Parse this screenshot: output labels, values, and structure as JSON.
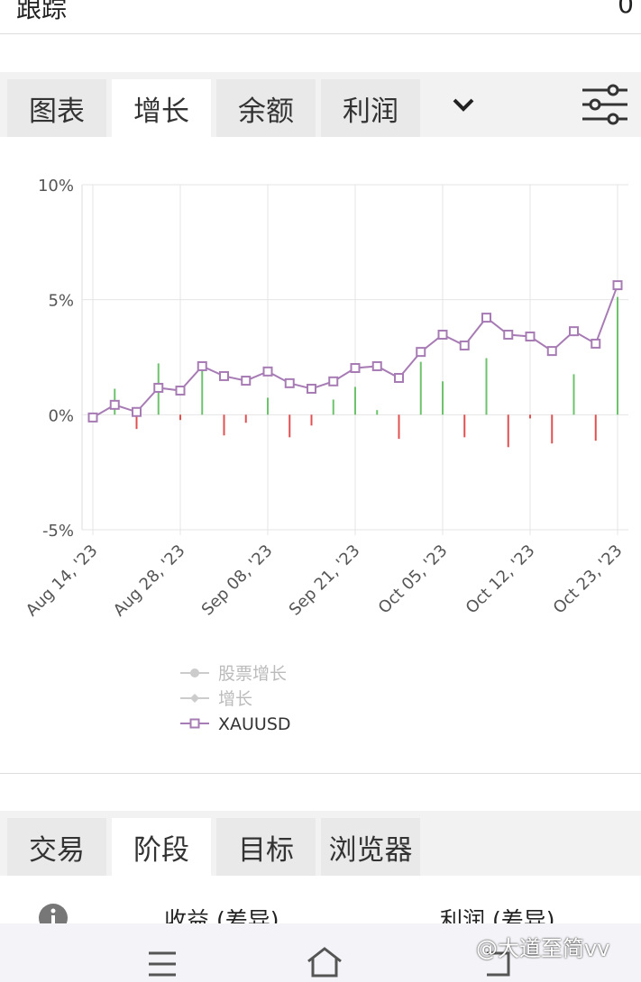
{
  "header": {
    "label": "跟踪",
    "value": "0"
  },
  "tabs": [
    "图表",
    "增长",
    "余额",
    "利润"
  ],
  "active_tab": 1,
  "chart_data": {
    "type": "line",
    "categories": [
      "Aug 14, '23",
      null,
      null,
      null,
      "Aug 28, '23",
      null,
      null,
      null,
      "Sep 08, '23",
      null,
      null,
      null,
      "Sep 21, '23",
      null,
      null,
      null,
      "Oct 05, '23",
      null,
      null,
      null,
      "Oct 12, '23",
      null,
      null,
      null,
      "Oct 23, '23"
    ],
    "ylim": [
      -5,
      10
    ],
    "yticks": [
      {
        "value": 10,
        "label": "10%"
      },
      {
        "value": 5,
        "label": "5%"
      },
      {
        "value": 0,
        "label": "0%"
      },
      {
        "value": -5,
        "label": "-5%"
      }
    ],
    "grid": true,
    "series": [
      {
        "name": "股票增长",
        "color": "#cccccc",
        "dimmed": true,
        "values": [
          null,
          null,
          null,
          null,
          null,
          null,
          null,
          null,
          null,
          null,
          null,
          null,
          null,
          null,
          null,
          null,
          null,
          null,
          null,
          null,
          null,
          null,
          null,
          null,
          null
        ]
      },
      {
        "name": "增长",
        "type": "bar",
        "color": "#6cc36c",
        "negative_color": "#e05050",
        "dimmed": true,
        "values": [
          null,
          1.13,
          -0.62,
          2.23,
          -0.23,
          2.0,
          -0.9,
          -0.35,
          0.74,
          -0.98,
          -0.47,
          0.66,
          1.21,
          0.2,
          -1.05,
          2.3,
          1.45,
          -0.98,
          2.46,
          -1.41,
          -0.16,
          -1.25,
          1.76,
          -1.13,
          5.12
        ]
      },
      {
        "name": "XAUUSD",
        "color": "#a77cb4",
        "values": [
          -0.12,
          0.43,
          0.12,
          1.17,
          1.05,
          2.11,
          1.68,
          1.48,
          1.88,
          1.37,
          1.13,
          1.45,
          2.03,
          2.11,
          1.6,
          2.73,
          3.48,
          3.01,
          4.22,
          3.48,
          3.4,
          2.77,
          3.63,
          3.09,
          5.63
        ]
      }
    ]
  },
  "tabs2": [
    "交易",
    "阶段",
    "目标",
    "浏览器"
  ],
  "active_tab2": 1,
  "columns": [
    "收益 (差异)",
    "利润 (差异)"
  ],
  "watermark": "@大道至简vv"
}
